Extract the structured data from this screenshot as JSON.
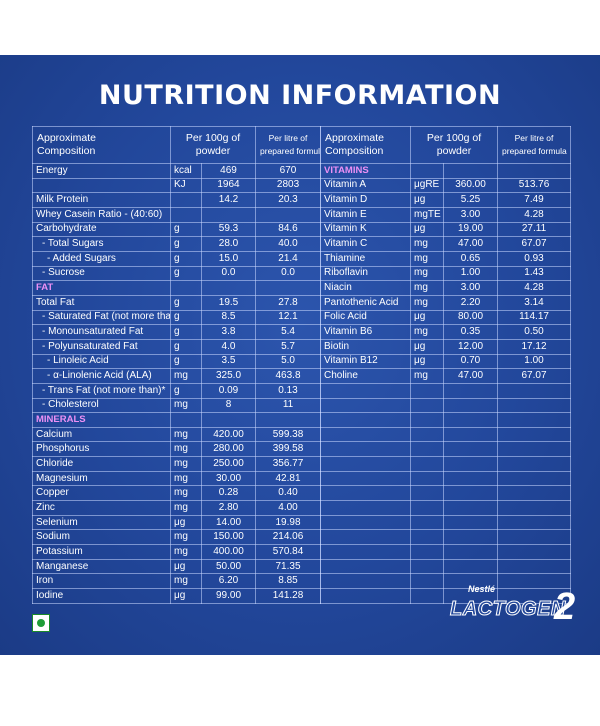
{
  "title": "NUTRITION INFORMATION",
  "headers": {
    "composition": [
      "Approximate",
      "Composition"
    ],
    "per100": [
      "Per 100g of",
      "powder"
    ],
    "perLitre": [
      "Per litre of",
      "prepared formula"
    ]
  },
  "left_rows": [
    {
      "name": "Energy",
      "unit": "kcal",
      "v1": "469",
      "v2": "670",
      "style": "plain"
    },
    {
      "name": "",
      "unit": "KJ",
      "v1": "1964",
      "v2": "2803",
      "style": "plain"
    },
    {
      "name": "Milk Protein",
      "unit": "",
      "v1": "14.2",
      "v2": "20.3",
      "style": "plain"
    },
    {
      "name": "Whey Casein Ratio - (40:60)",
      "unit": "",
      "v1": "",
      "v2": "",
      "style": "plain"
    },
    {
      "name": "Carbohydrate",
      "unit": "g",
      "v1": "59.3",
      "v2": "84.6",
      "style": "plain"
    },
    {
      "name": "- Total Sugars",
      "unit": "g",
      "v1": "28.0",
      "v2": "40.0",
      "style": "in1"
    },
    {
      "name": "- Added Sugars",
      "unit": "g",
      "v1": "15.0",
      "v2": "21.4",
      "style": "in2"
    },
    {
      "name": "- Sucrose",
      "unit": "g",
      "v1": "0.0",
      "v2": "0.0",
      "style": "in1"
    },
    {
      "name": "FAT",
      "unit": "",
      "v1": "",
      "v2": "",
      "style": "sec"
    },
    {
      "name": "Total Fat",
      "unit": "g",
      "v1": "19.5",
      "v2": "27.8",
      "style": "plain"
    },
    {
      "name": "- Saturated Fat (not more than)",
      "unit": "g",
      "v1": "8.5",
      "v2": "12.1",
      "style": "in1"
    },
    {
      "name": "- Monounsaturated Fat",
      "unit": "g",
      "v1": "3.8",
      "v2": "5.4",
      "style": "in1"
    },
    {
      "name": "- Polyunsaturated Fat",
      "unit": "g",
      "v1": "4.0",
      "v2": "5.7",
      "style": "in1"
    },
    {
      "name": "- Linoleic Acid",
      "unit": "g",
      "v1": "3.5",
      "v2": "5.0",
      "style": "in2"
    },
    {
      "name": "- α-Linolenic Acid (ALA)",
      "unit": "mg",
      "v1": "325.0",
      "v2": "463.8",
      "style": "in2"
    },
    {
      "name": "- Trans Fat (not more than)*",
      "unit": "g",
      "v1": "0.09",
      "v2": "0.13",
      "style": "in1"
    },
    {
      "name": "- Cholesterol",
      "unit": "mg",
      "v1": "8",
      "v2": "11",
      "style": "in1"
    },
    {
      "name": "MINERALS",
      "unit": "",
      "v1": "",
      "v2": "",
      "style": "sec"
    },
    {
      "name": "Calcium",
      "unit": "mg",
      "v1": "420.00",
      "v2": "599.38",
      "style": "plain"
    },
    {
      "name": "Phosphorus",
      "unit": "mg",
      "v1": "280.00",
      "v2": "399.58",
      "style": "plain"
    },
    {
      "name": "Chloride",
      "unit": "mg",
      "v1": "250.00",
      "v2": "356.77",
      "style": "plain"
    },
    {
      "name": "Magnesium",
      "unit": "mg",
      "v1": "30.00",
      "v2": "42.81",
      "style": "plain"
    },
    {
      "name": "Copper",
      "unit": "mg",
      "v1": "0.28",
      "v2": "0.40",
      "style": "plain"
    },
    {
      "name": "Zinc",
      "unit": "mg",
      "v1": "2.80",
      "v2": "4.00",
      "style": "plain"
    },
    {
      "name": "Selenium",
      "unit": "μg",
      "v1": "14.00",
      "v2": "19.98",
      "style": "plain"
    },
    {
      "name": "Sodium",
      "unit": "mg",
      "v1": "150.00",
      "v2": "214.06",
      "style": "plain"
    },
    {
      "name": "Potassium",
      "unit": "mg",
      "v1": "400.00",
      "v2": "570.84",
      "style": "plain"
    },
    {
      "name": "Manganese",
      "unit": "μg",
      "v1": "50.00",
      "v2": "71.35",
      "style": "plain"
    },
    {
      "name": "Iron",
      "unit": "mg",
      "v1": "6.20",
      "v2": "8.85",
      "style": "plain"
    },
    {
      "name": "Iodine",
      "unit": "μg",
      "v1": "99.00",
      "v2": "141.28",
      "style": "plain"
    }
  ],
  "right_rows": [
    {
      "name": "VITAMINS",
      "unit": "",
      "v1": "",
      "v2": "",
      "style": "sec"
    },
    {
      "name": "Vitamin A",
      "unit": "μgRE",
      "v1": "360.00",
      "v2": "513.76",
      "style": "plain"
    },
    {
      "name": "Vitamin D",
      "unit": "μg",
      "v1": "5.25",
      "v2": "7.49",
      "style": "plain"
    },
    {
      "name": "Vitamin E",
      "unit": "mgTE",
      "v1": "3.00",
      "v2": "4.28",
      "style": "plain"
    },
    {
      "name": "Vitamin K",
      "unit": "μg",
      "v1": "19.00",
      "v2": "27.11",
      "style": "plain"
    },
    {
      "name": "Vitamin C",
      "unit": "mg",
      "v1": "47.00",
      "v2": "67.07",
      "style": "plain"
    },
    {
      "name": "Thiamine",
      "unit": "mg",
      "v1": "0.65",
      "v2": "0.93",
      "style": "plain"
    },
    {
      "name": "Riboflavin",
      "unit": "mg",
      "v1": "1.00",
      "v2": "1.43",
      "style": "plain"
    },
    {
      "name": "Niacin",
      "unit": "mg",
      "v1": "3.00",
      "v2": "4.28",
      "style": "plain"
    },
    {
      "name": "Pantothenic Acid",
      "unit": "mg",
      "v1": "2.20",
      "v2": "3.14",
      "style": "plain"
    },
    {
      "name": "Folic Acid",
      "unit": "μg",
      "v1": "80.00",
      "v2": "114.17",
      "style": "plain"
    },
    {
      "name": "Vitamin B6",
      "unit": "mg",
      "v1": "0.35",
      "v2": "0.50",
      "style": "plain"
    },
    {
      "name": "Biotin",
      "unit": "μg",
      "v1": "12.00",
      "v2": "17.12",
      "style": "plain"
    },
    {
      "name": "Vitamin B12",
      "unit": "μg",
      "v1": "0.70",
      "v2": "1.00",
      "style": "plain"
    },
    {
      "name": "Choline",
      "unit": "mg",
      "v1": "47.00",
      "v2": "67.07",
      "style": "plain"
    }
  ],
  "brand": {
    "nestle": "Nestlé",
    "name": "LACTOGEN",
    "stage": "2"
  },
  "colors": {
    "panel": "#22479b",
    "section_label": "#ec90f5",
    "veg_dot": "#1f9d37"
  }
}
